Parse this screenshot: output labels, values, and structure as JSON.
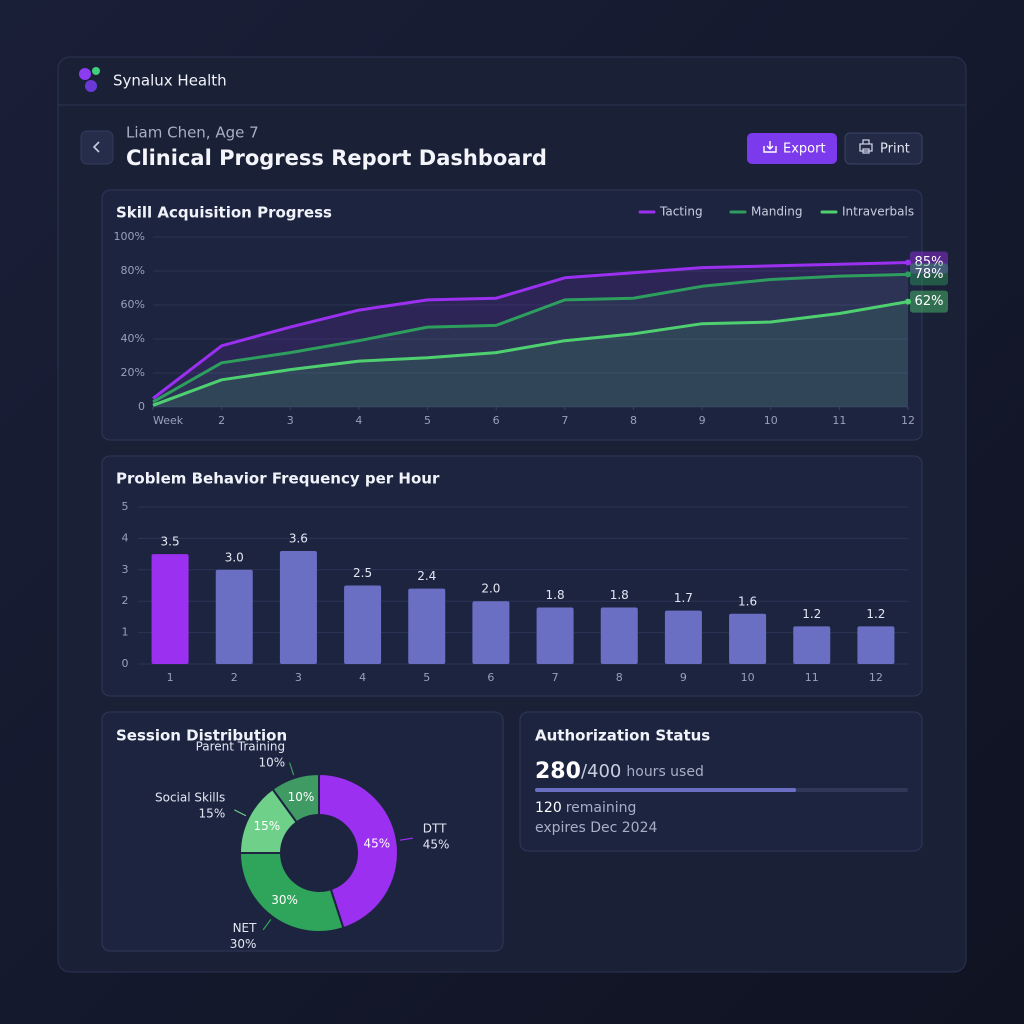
{
  "app": {
    "name": "Synalux Health"
  },
  "page": {
    "patient": "Liam Chen, Age 7",
    "title": "Clinical Progress Report Dashboard"
  },
  "buttons": {
    "export": "Export",
    "print": "Print"
  },
  "chart_data": [
    {
      "type": "line",
      "title": "Skill Acquisition Progress",
      "x": [
        1,
        2,
        3,
        4,
        5,
        6,
        7,
        8,
        9,
        10,
        11,
        12
      ],
      "xlim": [
        1,
        12
      ],
      "xticks": [
        {
          "value": 1,
          "label": "Week"
        },
        2,
        3,
        4,
        5,
        6,
        7,
        8,
        9,
        10,
        11,
        12
      ],
      "ylim": [
        0,
        100
      ],
      "yticks": [
        0,
        {
          "value": 20,
          "label": "20%"
        },
        {
          "value": 40,
          "label": "40%"
        },
        {
          "value": 60,
          "label": "60%"
        },
        {
          "value": 80,
          "label": "80%"
        },
        {
          "value": 100,
          "label": "100%"
        }
      ],
      "grid": true,
      "series": [
        {
          "name": "Tacting",
          "color": "#9b30f0",
          "values": [
            5,
            36,
            47,
            57,
            63,
            64,
            76,
            79,
            82,
            83,
            84,
            85
          ],
          "value_labels": [
            null,
            null,
            null,
            null,
            null,
            null,
            null,
            null,
            null,
            null,
            null,
            "85%"
          ]
        },
        {
          "name": "Manding",
          "color": "#2e9e5e",
          "values": [
            3,
            26,
            32,
            39,
            47,
            48,
            63,
            64,
            71,
            75,
            77,
            78
          ],
          "value_labels": [
            null,
            null,
            null,
            null,
            null,
            null,
            null,
            null,
            null,
            null,
            null,
            "78%"
          ]
        },
        {
          "name": "Intraverbals",
          "color": "#4fd070",
          "values": [
            1,
            16,
            22,
            27,
            29,
            32,
            39,
            43,
            49,
            50,
            55,
            62
          ],
          "value_labels": [
            null,
            null,
            null,
            null,
            null,
            null,
            null,
            null,
            null,
            null,
            null,
            "62%"
          ]
        }
      ]
    },
    {
      "type": "bar",
      "title": "Problem Behavior Frequency per Hour",
      "categories": [
        "1",
        "2",
        "3",
        "4",
        "5",
        "6",
        "7",
        "8",
        "9",
        "10",
        "11",
        "12"
      ],
      "values": [
        3.5,
        3,
        3.6,
        2.5,
        2.4,
        2,
        1.8,
        1.8,
        1.7,
        1.6,
        1.2,
        1.2
      ],
      "value_labels": [
        "3.5",
        "3.0",
        "3.6",
        "2.5",
        "2.4",
        "2.0",
        "1.8",
        "1.8",
        "1.7",
        "1.6",
        "1.2",
        "1.2"
      ],
      "colors": [
        "#9b30f0",
        "#6b6fc4",
        "#6b6fc4",
        "#6b6fc4",
        "#6b6fc4",
        "#6b6fc4",
        "#6b6fc4",
        "#6b6fc4",
        "#6b6fc4",
        "#6b6fc4",
        "#6b6fc4",
        "#6b6fc4"
      ],
      "ylim": [
        0,
        5
      ],
      "yticks": [
        0,
        1,
        2,
        3,
        4,
        5
      ],
      "grid": true
    },
    {
      "type": "pie",
      "title": "Session Distribution",
      "categories": [
        "DTT",
        "NET",
        "Social Skills",
        "Parent Training"
      ],
      "values": [
        45,
        30,
        15,
        10
      ],
      "value_labels": [
        "45%",
        "30%",
        "15%",
        "10%"
      ],
      "colors": [
        "#9b30f0",
        "#2ea55a",
        "#6fd08a",
        "#3f9a63"
      ]
    }
  ],
  "authorization": {
    "title": "Authorization Status",
    "used": 280,
    "separator": "/",
    "total": 400,
    "used_text": "hours used",
    "remaining": 120,
    "remaining_text": "remaining",
    "expires": "expires Dec 2024"
  }
}
